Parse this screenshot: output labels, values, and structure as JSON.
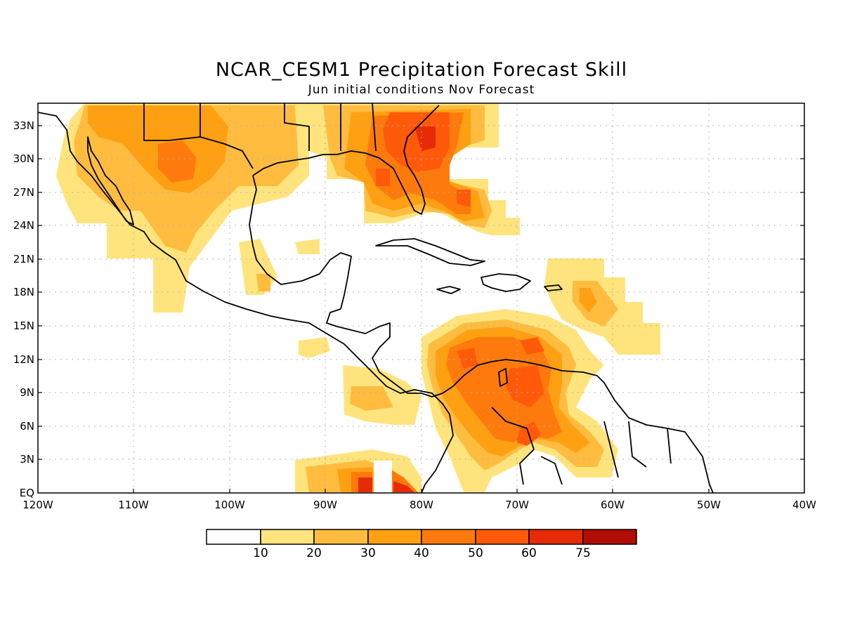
{
  "title": "NCAR_CESM1 Precipitation Forecast Skill",
  "subtitle": "Jun initial conditions   Nov Forecast",
  "lat_ticks": [
    "33N",
    "30N",
    "27N",
    "24N",
    "21N",
    "18N",
    "15N",
    "12N",
    "9N",
    "6N",
    "3N",
    "EQ"
  ],
  "lon_ticks": [
    "120W",
    "110W",
    "100W",
    "90W",
    "80W",
    "70W",
    "60W",
    "50W",
    "40W"
  ],
  "colorbar": {
    "labels": [
      "10",
      "20",
      "30",
      "40",
      "50",
      "60",
      "75"
    ],
    "colors": [
      "#ffffff",
      "#ffe47d",
      "#ffbc3f",
      "#ffa012",
      "#ff7a0c",
      "#ff5a0a",
      "#e62b06",
      "#b20d03"
    ]
  },
  "map": {
    "extent": {
      "lon": [
        -120,
        -40
      ],
      "lat": [
        0,
        35
      ]
    },
    "gridlines": "dotted",
    "colors": {
      "land_outline": "#000000",
      "background": "#ffffff"
    }
  }
}
